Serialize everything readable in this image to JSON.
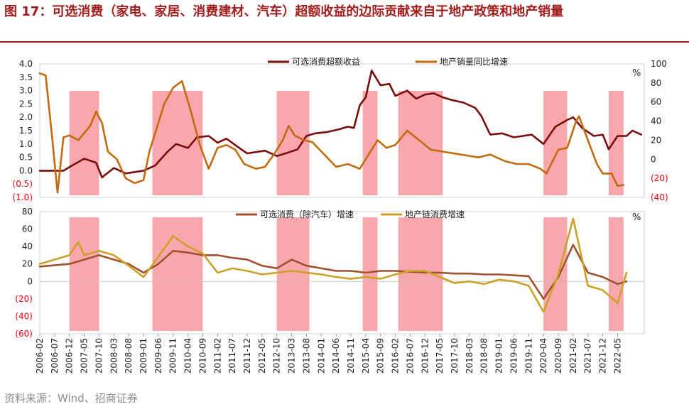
{
  "figure": {
    "title": "图 17：可选消费（家电、家居、消费建材、汽车）超额收益的边际贡献来自于地产政策和地产销量",
    "source": "资料来源：Wind、招商证券"
  },
  "colors": {
    "title": "#a31c1c",
    "excess_return": "#7a0c0c",
    "property_sales": "#c46a0e",
    "optional_consumption": "#a0522d",
    "property_chain": "#c9a227",
    "shade": "#f9a7ad",
    "negative_tick": "#e8000b"
  },
  "chart_data": [
    {
      "type": "line",
      "x_ticks": [
        "2006-02",
        "2006-07",
        "2006-12",
        "2007-05",
        "2007-10",
        "2008-03",
        "2008-08",
        "2009-01",
        "2009-06",
        "2009-11",
        "2010-04",
        "2010-09",
        "2011-02",
        "2011-07",
        "2011-12",
        "2012-05",
        "2012-10",
        "2013-03",
        "2013-08",
        "2014-01",
        "2014-06",
        "2014-11",
        "2015-04",
        "2015-09",
        "2016-02",
        "2016-07",
        "2016-12",
        "2017-05",
        "2017-10",
        "2018-03",
        "2018-08",
        "2019-01",
        "2019-06",
        "2019-11",
        "2020-04",
        "2020-09",
        "2021-02",
        "2021-07",
        "2021-12",
        "2022-05"
      ],
      "y_left": {
        "ticks": [
          "4.0",
          "3.5",
          "3.0",
          "2.5",
          "2.0",
          "1.5",
          "1.0",
          "0.5",
          "0.0",
          "(0.5)",
          "(1.0)"
        ],
        "lim": [
          -1.0,
          4.0
        ]
      },
      "y_right": {
        "ticks": [
          "100",
          "80",
          "60",
          "40",
          "20",
          "0",
          "(20)",
          "(40)"
        ],
        "lim": [
          -40,
          100
        ],
        "unit": "%"
      },
      "shaded_periods": [
        [
          "2006-12",
          "2007-10"
        ],
        [
          "2009-04",
          "2010-09"
        ],
        [
          "2012-10",
          "2013-09"
        ],
        [
          "2015-03",
          "2015-08"
        ],
        [
          "2016-03",
          "2017-06"
        ],
        [
          "2020-04",
          "2020-12"
        ],
        [
          "2022-02",
          "2022-07"
        ]
      ],
      "series": [
        {
          "name": "可选消费超额收益",
          "axis": "left",
          "color": "#7a0c0c",
          "points": [
            [
              "2006-02",
              0.0
            ],
            [
              "2006-10",
              0.0
            ],
            [
              "2007-01",
              0.2
            ],
            [
              "2007-05",
              0.45
            ],
            [
              "2007-09",
              0.3
            ],
            [
              "2007-11",
              -0.25
            ],
            [
              "2008-03",
              0.1
            ],
            [
              "2008-07",
              -0.1
            ],
            [
              "2008-10",
              -0.05
            ],
            [
              "2009-01",
              0.0
            ],
            [
              "2009-05",
              0.2
            ],
            [
              "2009-09",
              0.7
            ],
            [
              "2009-12",
              1.0
            ],
            [
              "2010-04",
              0.85
            ],
            [
              "2010-07",
              1.25
            ],
            [
              "2010-11",
              1.3
            ],
            [
              "2011-02",
              1.05
            ],
            [
              "2011-05",
              1.2
            ],
            [
              "2011-10",
              0.8
            ],
            [
              "2011-12",
              0.65
            ],
            [
              "2012-03",
              0.7
            ],
            [
              "2012-06",
              0.75
            ],
            [
              "2012-10",
              0.55
            ],
            [
              "2013-01",
              0.65
            ],
            [
              "2013-05",
              0.8
            ],
            [
              "2013-08",
              1.3
            ],
            [
              "2013-11",
              1.4
            ],
            [
              "2014-03",
              1.45
            ],
            [
              "2014-07",
              1.55
            ],
            [
              "2014-10",
              1.65
            ],
            [
              "2014-12",
              1.6
            ],
            [
              "2015-02",
              2.45
            ],
            [
              "2015-04",
              2.75
            ],
            [
              "2015-06",
              3.75
            ],
            [
              "2015-09",
              3.2
            ],
            [
              "2015-12",
              3.25
            ],
            [
              "2016-02",
              2.8
            ],
            [
              "2016-06",
              3.0
            ],
            [
              "2016-09",
              2.7
            ],
            [
              "2016-12",
              2.85
            ],
            [
              "2017-03",
              2.9
            ],
            [
              "2017-06",
              2.75
            ],
            [
              "2017-09",
              2.65
            ],
            [
              "2018-01",
              2.55
            ],
            [
              "2018-05",
              2.35
            ],
            [
              "2018-07",
              2.05
            ],
            [
              "2018-10",
              1.35
            ],
            [
              "2019-02",
              1.4
            ],
            [
              "2019-06",
              1.25
            ],
            [
              "2019-09",
              1.3
            ],
            [
              "2019-12",
              1.35
            ],
            [
              "2020-04",
              1.0
            ],
            [
              "2020-08",
              1.65
            ],
            [
              "2020-12",
              1.9
            ],
            [
              "2021-02",
              2.0
            ],
            [
              "2021-05",
              1.6
            ],
            [
              "2021-09",
              1.3
            ],
            [
              "2021-12",
              1.35
            ],
            [
              "2022-02",
              0.8
            ],
            [
              "2022-05",
              1.3
            ],
            [
              "2022-08",
              1.3
            ],
            [
              "2022-10",
              1.5
            ],
            [
              "2023-01",
              1.35
            ]
          ]
        },
        {
          "name": "地产销量同比增速",
          "axis": "right",
          "color": "#c46a0e",
          "points": [
            [
              "2006-02",
              90
            ],
            [
              "2006-04",
              88
            ],
            [
              "2006-06",
              28
            ],
            [
              "2006-08",
              -35
            ],
            [
              "2006-10",
              23
            ],
            [
              "2006-12",
              25
            ],
            [
              "2007-03",
              20
            ],
            [
              "2007-07",
              35
            ],
            [
              "2007-09",
              50
            ],
            [
              "2007-11",
              38
            ],
            [
              "2008-01",
              8
            ],
            [
              "2008-04",
              0
            ],
            [
              "2008-07",
              -20
            ],
            [
              "2008-10",
              -25
            ],
            [
              "2009-01",
              -22
            ],
            [
              "2009-03",
              8
            ],
            [
              "2009-06",
              38
            ],
            [
              "2009-08",
              58
            ],
            [
              "2009-11",
              75
            ],
            [
              "2010-02",
              82
            ],
            [
              "2010-05",
              50
            ],
            [
              "2010-08",
              15
            ],
            [
              "2010-11",
              -10
            ],
            [
              "2011-02",
              12
            ],
            [
              "2011-05",
              15
            ],
            [
              "2011-08",
              10
            ],
            [
              "2011-11",
              -5
            ],
            [
              "2012-03",
              -10
            ],
            [
              "2012-06",
              -8
            ],
            [
              "2012-09",
              5
            ],
            [
              "2012-12",
              20
            ],
            [
              "2013-02",
              35
            ],
            [
              "2013-04",
              25
            ],
            [
              "2013-07",
              20
            ],
            [
              "2013-10",
              18
            ],
            [
              "2014-02",
              5
            ],
            [
              "2014-06",
              -8
            ],
            [
              "2014-10",
              -5
            ],
            [
              "2015-02",
              -10
            ],
            [
              "2015-05",
              5
            ],
            [
              "2015-08",
              20
            ],
            [
              "2015-11",
              12
            ],
            [
              "2016-02",
              15
            ],
            [
              "2016-06",
              30
            ],
            [
              "2016-10",
              20
            ],
            [
              "2017-02",
              10
            ],
            [
              "2017-06",
              8
            ],
            [
              "2017-10",
              6
            ],
            [
              "2018-02",
              4
            ],
            [
              "2018-06",
              2
            ],
            [
              "2018-10",
              5
            ],
            [
              "2019-03",
              -2
            ],
            [
              "2019-07",
              -5
            ],
            [
              "2019-11",
              -5
            ],
            [
              "2020-03",
              -10
            ],
            [
              "2020-05",
              -15
            ],
            [
              "2020-09",
              10
            ],
            [
              "2020-12",
              12
            ],
            [
              "2021-03",
              40
            ],
            [
              "2021-04",
              45
            ],
            [
              "2021-07",
              20
            ],
            [
              "2021-10",
              -5
            ],
            [
              "2021-12",
              -15
            ],
            [
              "2022-03",
              -15
            ],
            [
              "2022-05",
              -28
            ],
            [
              "2022-07",
              -27
            ]
          ]
        },
        {
          "name": "可选消费（除汽车）增速",
          "axis": "lower",
          "color": "#a0522d",
          "points": [
            [
              "2006-02",
              17
            ],
            [
              "2006-12",
              20
            ],
            [
              "2007-05",
              25
            ],
            [
              "2007-10",
              30
            ],
            [
              "2008-03",
              25
            ],
            [
              "2008-08",
              20
            ],
            [
              "2009-01",
              10
            ],
            [
              "2009-06",
              20
            ],
            [
              "2009-11",
              35
            ],
            [
              "2010-04",
              33
            ],
            [
              "2010-09",
              30
            ],
            [
              "2011-02",
              30
            ],
            [
              "2011-07",
              27
            ],
            [
              "2011-12",
              25
            ],
            [
              "2012-05",
              18
            ],
            [
              "2012-10",
              15
            ],
            [
              "2013-03",
              25
            ],
            [
              "2013-08",
              18
            ],
            [
              "2014-01",
              15
            ],
            [
              "2014-06",
              12
            ],
            [
              "2014-11",
              12
            ],
            [
              "2015-04",
              10
            ],
            [
              "2015-09",
              12
            ],
            [
              "2016-02",
              12
            ],
            [
              "2016-07",
              11
            ],
            [
              "2016-12",
              10
            ],
            [
              "2017-05",
              10
            ],
            [
              "2017-10",
              9
            ],
            [
              "2018-03",
              9
            ],
            [
              "2018-08",
              8
            ],
            [
              "2019-01",
              8
            ],
            [
              "2019-06",
              7
            ],
            [
              "2019-11",
              6
            ],
            [
              "2020-04",
              -20
            ],
            [
              "2020-09",
              5
            ],
            [
              "2021-02",
              42
            ],
            [
              "2021-07",
              10
            ],
            [
              "2021-12",
              5
            ],
            [
              "2022-05",
              -3
            ],
            [
              "2022-08",
              0
            ]
          ]
        },
        {
          "name": "地产链消费增速",
          "axis": "lower",
          "color": "#c9a227",
          "points": [
            [
              "2006-02",
              20
            ],
            [
              "2006-07",
              25
            ],
            [
              "2006-12",
              30
            ],
            [
              "2007-03",
              45
            ],
            [
              "2007-05",
              30
            ],
            [
              "2007-10",
              35
            ],
            [
              "2008-03",
              30
            ],
            [
              "2008-08",
              18
            ],
            [
              "2009-01",
              5
            ],
            [
              "2009-06",
              28
            ],
            [
              "2009-11",
              52
            ],
            [
              "2010-04",
              40
            ],
            [
              "2010-09",
              32
            ],
            [
              "2011-02",
              10
            ],
            [
              "2011-07",
              15
            ],
            [
              "2011-12",
              12
            ],
            [
              "2012-05",
              8
            ],
            [
              "2012-10",
              10
            ],
            [
              "2013-03",
              12
            ],
            [
              "2013-08",
              10
            ],
            [
              "2014-01",
              8
            ],
            [
              "2014-06",
              5
            ],
            [
              "2014-11",
              3
            ],
            [
              "2015-04",
              5
            ],
            [
              "2015-09",
              3
            ],
            [
              "2016-02",
              8
            ],
            [
              "2016-07",
              12
            ],
            [
              "2016-12",
              12
            ],
            [
              "2017-05",
              5
            ],
            [
              "2017-10",
              -2
            ],
            [
              "2018-03",
              0
            ],
            [
              "2018-08",
              -3
            ],
            [
              "2019-01",
              2
            ],
            [
              "2019-06",
              0
            ],
            [
              "2019-11",
              -5
            ],
            [
              "2020-04",
              -35
            ],
            [
              "2020-09",
              8
            ],
            [
              "2021-02",
              72
            ],
            [
              "2021-07",
              -5
            ],
            [
              "2021-12",
              -10
            ],
            [
              "2022-05",
              -25
            ],
            [
              "2022-08",
              10
            ]
          ]
        }
      ]
    },
    {
      "type": "line",
      "y_ticks": [
        "80",
        "60",
        "40",
        "20",
        "0",
        "(20)",
        "(40)",
        "(60)"
      ],
      "y_lim": [
        -60,
        80
      ],
      "unit": "%"
    }
  ]
}
